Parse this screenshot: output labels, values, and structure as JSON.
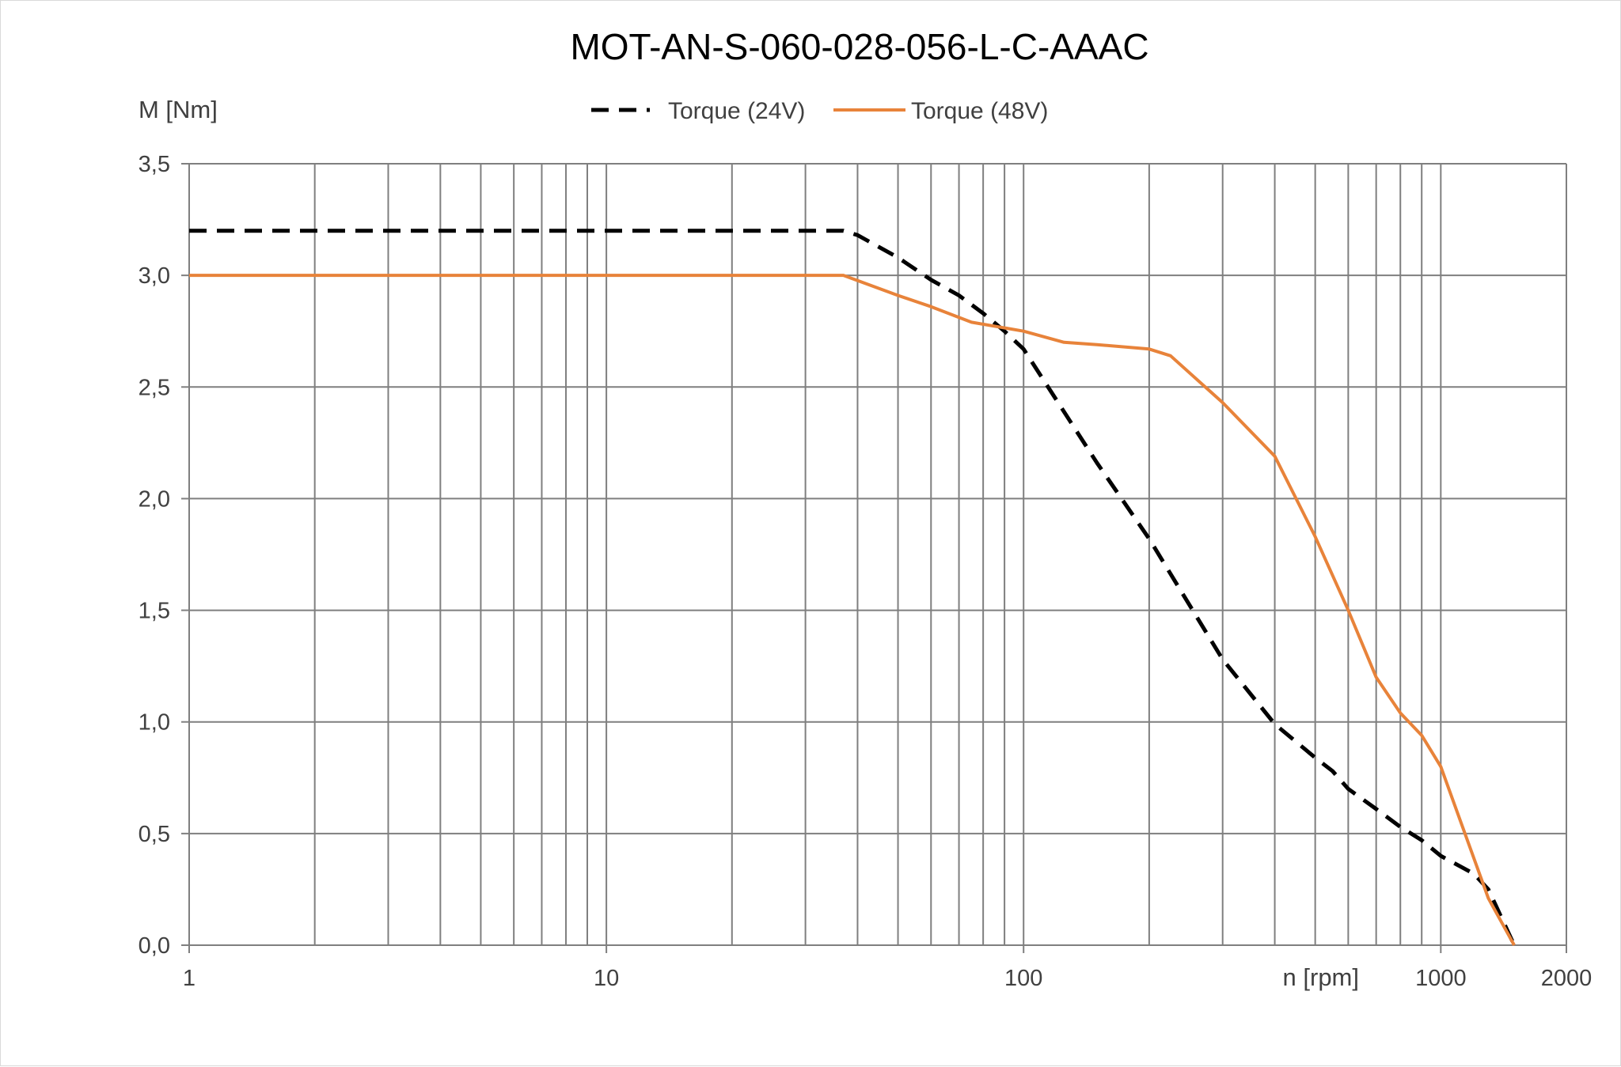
{
  "chart_data": {
    "type": "line",
    "title": "MOT-AN-S-060-028-056-L-C-AAAC",
    "xlabel": "n [rpm]",
    "ylabel": "M [Nm]",
    "xscale": "log",
    "xlim": [
      1,
      2000
    ],
    "ylim": [
      0,
      3.5
    ],
    "grid": true,
    "legend_position": "top",
    "x_tick_labels": [
      {
        "value": 1,
        "label": "1"
      },
      {
        "value": 10,
        "label": "10"
      },
      {
        "value": 100,
        "label": "100"
      },
      {
        "value": 1000,
        "label": "1000"
      },
      {
        "value": 2000,
        "label": "2000"
      }
    ],
    "y_tick_labels": [
      {
        "value": 0,
        "label": "0,0"
      },
      {
        "value": 0.5,
        "label": "0,5"
      },
      {
        "value": 1.0,
        "label": "1,0"
      },
      {
        "value": 1.5,
        "label": "1,5"
      },
      {
        "value": 2.0,
        "label": "2,0"
      },
      {
        "value": 2.5,
        "label": "2,5"
      },
      {
        "value": 3.0,
        "label": "3,0"
      },
      {
        "value": 3.5,
        "label": "3,5"
      }
    ],
    "series": [
      {
        "name": "Torque (24V)",
        "color": "#000000",
        "style": "dashed",
        "x": [
          1,
          37,
          40,
          50,
          60,
          70,
          80,
          90,
          100,
          150,
          200,
          300,
          400,
          500,
          550,
          600,
          700,
          800,
          900,
          1000,
          1200,
          1300,
          1500
        ],
        "y": [
          3.2,
          3.2,
          3.18,
          3.08,
          2.98,
          2.91,
          2.83,
          2.75,
          2.67,
          2.16,
          1.82,
          1.28,
          0.99,
          0.84,
          0.78,
          0.7,
          0.61,
          0.53,
          0.47,
          0.4,
          0.32,
          0.25,
          0.0
        ]
      },
      {
        "name": "Torque (48V)",
        "color": "#e8833a",
        "style": "solid",
        "x": [
          1,
          37,
          50,
          60,
          75,
          100,
          125,
          150,
          200,
          225,
          300,
          400,
          500,
          600,
          700,
          800,
          900,
          1000,
          1300,
          1500
        ],
        "y": [
          3.0,
          3.0,
          2.91,
          2.86,
          2.79,
          2.75,
          2.7,
          2.69,
          2.67,
          2.64,
          2.43,
          2.19,
          1.83,
          1.5,
          1.2,
          1.04,
          0.94,
          0.8,
          0.21,
          0.0
        ]
      }
    ]
  }
}
